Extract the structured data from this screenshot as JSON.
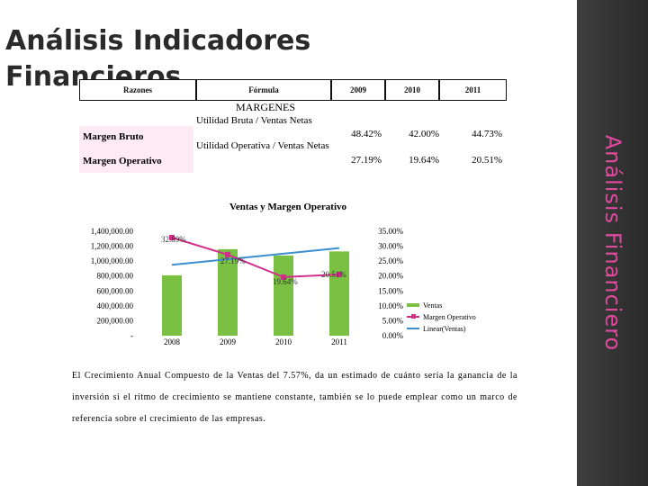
{
  "slide": {
    "title": "Análisis Indicadores Financieros",
    "side_title": "Análisis Financiero"
  },
  "table": {
    "headers": [
      "Razones",
      "Fórmula",
      "2009",
      "2010",
      "2011"
    ],
    "section": "MARGENES",
    "rows": [
      {
        "name": "Margen Bruto",
        "formula": "Utilidad Bruta / Ventas Netas",
        "values": [
          "48.42%",
          "42.00%",
          "44.73%"
        ]
      },
      {
        "name": "Margen Operativo",
        "formula": "Utilidad Operativa / Ventas Netas",
        "values": [
          "27.19%",
          "19.64%",
          "20.51%"
        ]
      }
    ]
  },
  "chart_data": {
    "type": "bar",
    "title": "Ventas y Margen Operativo",
    "categories": [
      "2008",
      "2009",
      "2010",
      "2011"
    ],
    "y_left_ticks": [
      "1,400,000.00",
      "1,200,000.00",
      "1,000,000.00",
      "800,000.00",
      "600,000.00",
      "400,000.00",
      "200,000.00",
      "-"
    ],
    "y_left_range": [
      0,
      1400000
    ],
    "y_right_ticks": [
      "35.00%",
      "30.00%",
      "25.00%",
      "20.00%",
      "15.00%",
      "10.00%",
      "5.00%",
      "0.00%"
    ],
    "y_right_range": [
      0,
      35
    ],
    "series": [
      {
        "name": "Ventas",
        "kind": "bar",
        "axis": "left",
        "color": "#7ac143",
        "values": [
          810000,
          1160000,
          1075000,
          1130000
        ]
      },
      {
        "name": "Margen Operativo",
        "kind": "line",
        "axis": "right",
        "color": "#d0308a",
        "values": [
          32.89,
          27.19,
          19.64,
          20.51
        ],
        "labels": [
          "32.89%",
          "27.19%",
          "19.64%",
          "20.51%"
        ]
      },
      {
        "name": "Linear(Ventas)",
        "kind": "trend",
        "axis": "left",
        "color": "#3b8fd0",
        "values": [
          950000,
          1025000,
          1100000,
          1175000
        ]
      }
    ],
    "legend": [
      "Ventas",
      "Margen Operativo",
      "Linear(Ventas)"
    ],
    "legend_position": "right"
  },
  "note": "El Crecimiento Anual Compuesto de la Ventas del 7.57%, da un estimado de cuánto sería la ganancia de la inversión si el ritmo de crecimiento se mantiene constante, también se lo puede emplear como un marco de referencia sobre el crecimiento de las empresas."
}
